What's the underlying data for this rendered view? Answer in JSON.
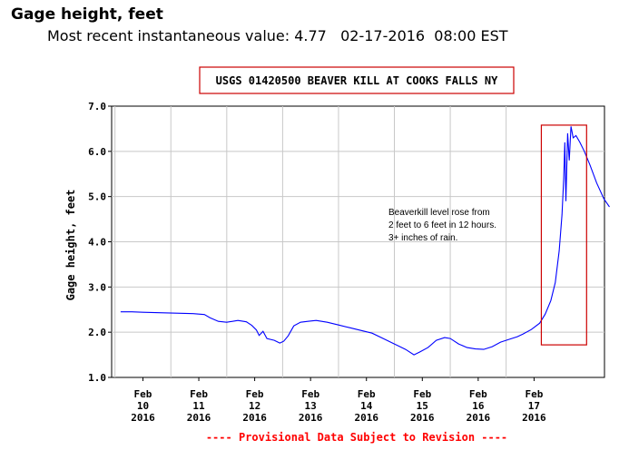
{
  "header": {
    "title": "Gage height, feet",
    "subtitle": "Most recent instantaneous value: 4.77   02-17-2016  08:00 EST"
  },
  "chart_data": {
    "type": "line",
    "title": "USGS 01420500 BEAVER KILL AT COOKS FALLS NY",
    "ylabel": "Gage height, feet",
    "xlabel": "",
    "ylim": [
      1.0,
      7.0
    ],
    "y_ticks": [
      "1.0",
      "2.0",
      "3.0",
      "4.0",
      "5.0",
      "6.0",
      "7.0"
    ],
    "x_ticks": [
      {
        "month": "Feb",
        "day": "10",
        "year": "2016"
      },
      {
        "month": "Feb",
        "day": "11",
        "year": "2016"
      },
      {
        "month": "Feb",
        "day": "12",
        "year": "2016"
      },
      {
        "month": "Feb",
        "day": "13",
        "year": "2016"
      },
      {
        "month": "Feb",
        "day": "14",
        "year": "2016"
      },
      {
        "month": "Feb",
        "day": "15",
        "year": "2016"
      },
      {
        "month": "Feb",
        "day": "16",
        "year": "2016"
      },
      {
        "month": "Feb",
        "day": "17",
        "year": "2016"
      }
    ],
    "x_unit": "days since Feb 10 2016 00:00",
    "grid": true,
    "series": [
      {
        "name": "",
        "color": "#0000ff",
        "points": [
          [
            -0.4,
            2.45
          ],
          [
            -0.2,
            2.45
          ],
          [
            0.0,
            2.44
          ],
          [
            0.3,
            2.43
          ],
          [
            0.6,
            2.42
          ],
          [
            0.9,
            2.41
          ],
          [
            1.1,
            2.39
          ],
          [
            1.2,
            2.32
          ],
          [
            1.35,
            2.24
          ],
          [
            1.5,
            2.22
          ],
          [
            1.7,
            2.26
          ],
          [
            1.85,
            2.23
          ],
          [
            1.95,
            2.15
          ],
          [
            2.03,
            2.05
          ],
          [
            2.08,
            1.93
          ],
          [
            2.15,
            2.02
          ],
          [
            2.22,
            1.86
          ],
          [
            2.35,
            1.82
          ],
          [
            2.45,
            1.76
          ],
          [
            2.52,
            1.8
          ],
          [
            2.6,
            1.92
          ],
          [
            2.7,
            2.14
          ],
          [
            2.82,
            2.22
          ],
          [
            2.95,
            2.24
          ],
          [
            3.1,
            2.26
          ],
          [
            3.3,
            2.22
          ],
          [
            3.5,
            2.16
          ],
          [
            3.7,
            2.1
          ],
          [
            3.9,
            2.04
          ],
          [
            4.1,
            1.98
          ],
          [
            4.3,
            1.86
          ],
          [
            4.5,
            1.74
          ],
          [
            4.7,
            1.62
          ],
          [
            4.85,
            1.5
          ],
          [
            4.95,
            1.56
          ],
          [
            5.1,
            1.66
          ],
          [
            5.25,
            1.82
          ],
          [
            5.4,
            1.88
          ],
          [
            5.5,
            1.86
          ],
          [
            5.65,
            1.74
          ],
          [
            5.8,
            1.66
          ],
          [
            5.95,
            1.63
          ],
          [
            6.1,
            1.62
          ],
          [
            6.25,
            1.68
          ],
          [
            6.4,
            1.78
          ],
          [
            6.55,
            1.84
          ],
          [
            6.7,
            1.9
          ],
          [
            6.8,
            1.96
          ],
          [
            6.95,
            2.06
          ],
          [
            7.1,
            2.2
          ],
          [
            7.2,
            2.4
          ],
          [
            7.3,
            2.7
          ],
          [
            7.38,
            3.1
          ],
          [
            7.45,
            3.8
          ],
          [
            7.5,
            4.6
          ],
          [
            7.53,
            5.4
          ],
          [
            7.55,
            6.2
          ],
          [
            7.57,
            4.9
          ],
          [
            7.6,
            6.4
          ],
          [
            7.63,
            5.8
          ],
          [
            7.66,
            6.55
          ],
          [
            7.7,
            6.3
          ],
          [
            7.75,
            6.35
          ],
          [
            7.82,
            6.2
          ],
          [
            7.9,
            6.0
          ],
          [
            8.0,
            5.7
          ],
          [
            8.12,
            5.3
          ],
          [
            8.25,
            4.95
          ],
          [
            8.35,
            4.77
          ]
        ]
      }
    ],
    "highlight_box": {
      "x_range": [
        7.13,
        7.94
      ],
      "y_range": [
        1.72,
        6.58
      ],
      "color": "#cc0000"
    },
    "annotation": [
      "Beaverkill level rose from",
      "2 feet to 6 feet in 12 hours.",
      "3+ inches of rain."
    ],
    "footer": "---- Provisional Data Subject to Revision ----"
  }
}
